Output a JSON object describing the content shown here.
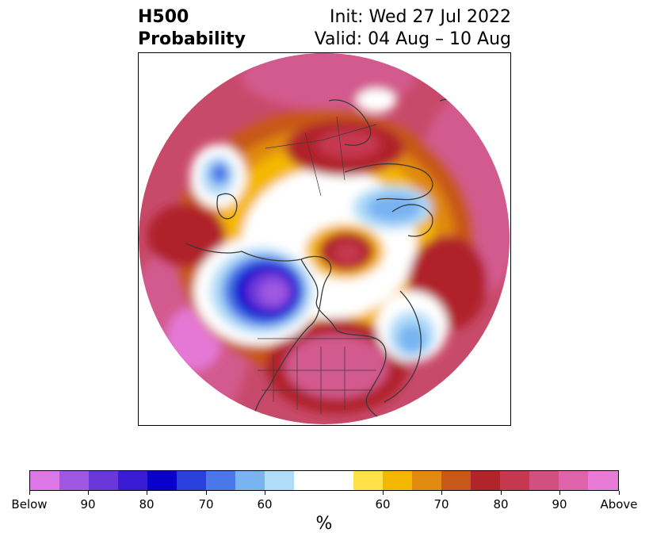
{
  "header": {
    "title_line1": "H500",
    "title_line2": "Probability",
    "init_text": "Init: Wed 27 Jul 2022",
    "valid_text": "Valid: 04 Aug – 10 Aug"
  },
  "map": {
    "projection": "north-polar-stereographic",
    "features": [
      "coastlines",
      "country-borders",
      "us-state-borders",
      "probability-shading"
    ]
  },
  "colorbar": {
    "colors": [
      "#dd77e6",
      "#a058e2",
      "#6a38d8",
      "#3a1cd4",
      "#0a00cc",
      "#2a40dc",
      "#4a78e8",
      "#78b4f2",
      "#b0dcf8",
      "#ffffff",
      "#ffe14a",
      "#f5b800",
      "#e08a10",
      "#c85818",
      "#b0242a",
      "#c63850",
      "#d05080",
      "#dd64aa",
      "#e87ad8"
    ],
    "tick_labels": [
      "Below",
      "90",
      "80",
      "70",
      "60",
      "60",
      "70",
      "80",
      "90",
      "Above"
    ],
    "unit_label": "%"
  }
}
